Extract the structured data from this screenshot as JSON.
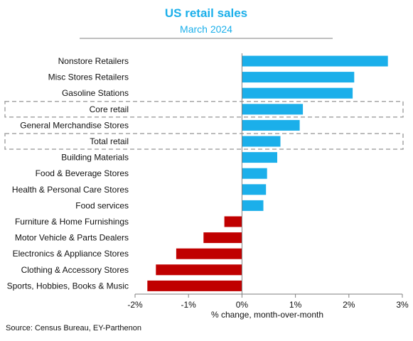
{
  "chart_data": {
    "type": "bar",
    "orientation": "horizontal",
    "title": "US retail sales",
    "subtitle": "March 2024",
    "xlabel": "% change, month-over-month",
    "ylabel": "",
    "xlim": [
      -2,
      3
    ],
    "x_ticks": [
      -2,
      -1,
      0,
      1,
      2,
      3
    ],
    "x_tick_labels": [
      "-2%",
      "-1%",
      "0%",
      "1%",
      "2%",
      "3%"
    ],
    "grid": false,
    "categories": [
      "Nonstore Retailers",
      "Misc Stores Retailers",
      "Gasoline Stations",
      "Core retail",
      "General Merchandise Stores",
      "Total retail",
      "Building Materials",
      "Food & Beverage Stores",
      "Health & Personal Care Stores",
      "Food services",
      "Furniture & Home Furnishings",
      "Motor Vehicle & Parts Dealers",
      "Electronics & Appliance Stores",
      "Clothing & Accessory Stores",
      "Sports, Hobbies, Books & Music"
    ],
    "values": [
      2.73,
      2.1,
      2.07,
      1.14,
      1.08,
      0.72,
      0.66,
      0.47,
      0.45,
      0.4,
      -0.33,
      -0.72,
      -1.23,
      -1.61,
      -1.77
    ],
    "highlighted": [
      "Core retail",
      "Total retail"
    ],
    "colors": {
      "positive": "#1BAFEA",
      "negative": "#C00000",
      "title": "#1BAFEA",
      "highlight_box": "#A6A6A6",
      "axis": "#7F7F7F"
    }
  },
  "source": "Source: Census Bureau, EY-Parthenon"
}
